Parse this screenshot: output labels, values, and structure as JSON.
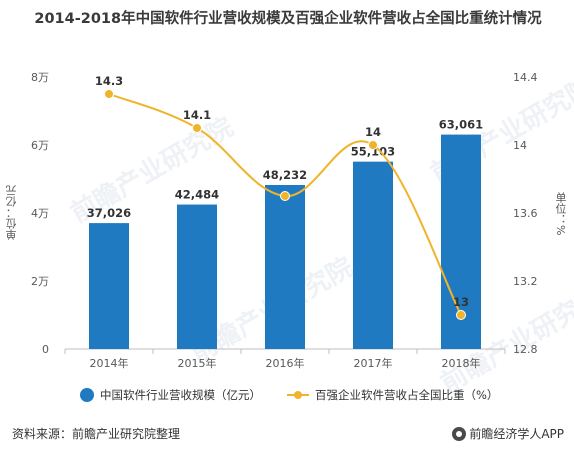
{
  "title": "2014-2018年中国软件行业营收规模及百强企业软件营收占全国比重统计情况",
  "chart_data": {
    "type": "bar+line",
    "categories": [
      "2014年",
      "2015年",
      "2016年",
      "2017年",
      "2018年"
    ],
    "series": [
      {
        "name": "中国软件行业营收规模（亿元）",
        "type": "bar",
        "axis": "left",
        "values": [
          37026,
          42484,
          48232,
          55103,
          63061
        ],
        "labels": [
          "37,026",
          "42,484",
          "48,232",
          "55,103",
          "63,061"
        ],
        "color": "#1f7ac2"
      },
      {
        "name": "百强企业软件营收占全国比重（%）",
        "type": "line",
        "axis": "right",
        "values": [
          14.3,
          14.1,
          13.7,
          14.0,
          13.0
        ],
        "labels": [
          "14.3",
          "14.1",
          "",
          "14",
          "13"
        ],
        "color": "#f0b42b"
      }
    ],
    "y_left": {
      "label": "单位：亿元",
      "ylim": [
        0,
        80000
      ],
      "ticks": [
        0,
        20000,
        40000,
        60000,
        80000
      ],
      "tick_labels": [
        "0",
        "2万",
        "4万",
        "6万",
        "8万"
      ]
    },
    "y_right": {
      "label": "单位：%",
      "ylim": [
        12.8,
        14.4
      ],
      "ticks": [
        12.8,
        13.2,
        13.6,
        14.0,
        14.4
      ],
      "tick_labels": [
        "12.8",
        "13.2",
        "13.6",
        "14",
        "14.4"
      ]
    },
    "grid": false,
    "legend_position": "bottom"
  },
  "watermark": "前瞻产业研究院",
  "footer": {
    "source": "资料来源：前瞻产业研究院整理",
    "brand": "前瞻经济学人APP"
  }
}
